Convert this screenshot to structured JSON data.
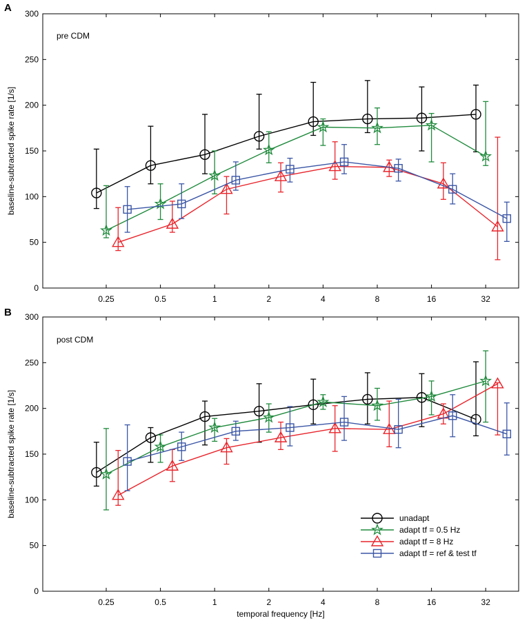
{
  "chart_data": [
    {
      "type": "line",
      "panel_label": "A",
      "annotation": "pre CDM",
      "xlabel": "",
      "ylabel": "baseline-subtracted spike rate [1/s]",
      "xscale": "log2",
      "x": [
        0.25,
        0.5,
        1,
        2,
        4,
        8,
        16,
        32
      ],
      "xtick_labels": [
        "0.25",
        "0.5",
        "1",
        "2",
        "4",
        "8",
        "16",
        "32"
      ],
      "ylim": [
        0,
        300
      ],
      "yticks": [
        0,
        50,
        100,
        150,
        200,
        250,
        300
      ],
      "ytick_labels": [
        "0",
        "50",
        "100",
        "150",
        "200",
        "250",
        "300"
      ],
      "grid": false,
      "series": [
        {
          "name": "unadapt",
          "color": "#000000",
          "marker": "circle",
          "values": [
            104,
            134,
            146,
            166,
            182,
            185,
            186,
            190
          ],
          "err_low": [
            87,
            114,
            125,
            152,
            167,
            170,
            150,
            149
          ],
          "err_high": [
            152,
            177,
            190,
            212,
            225,
            227,
            220,
            222
          ]
        },
        {
          "name": "adapt tf = 0.5 Hz",
          "color": "#1f8a3c",
          "marker": "star",
          "values": [
            63,
            92,
            123,
            151,
            176,
            175,
            178,
            144
          ],
          "err_low": [
            55,
            75,
            103,
            137,
            156,
            157,
            138,
            134
          ],
          "err_high": [
            112,
            114,
            150,
            171,
            185,
            197,
            191,
            204
          ]
        },
        {
          "name": "adapt tf = 8 Hz",
          "color": "#e8232a",
          "marker": "triangle",
          "values": [
            50,
            70,
            108,
            122,
            133,
            132,
            114,
            67
          ],
          "err_low": [
            41,
            61,
            81,
            105,
            119,
            122,
            97,
            31
          ],
          "err_high": [
            88,
            95,
            122,
            137,
            160,
            140,
            137,
            165
          ]
        },
        {
          "name": "adapt tf = ref & test tf",
          "color": "#3a55a5",
          "marker": "square",
          "values": [
            86,
            92,
            118,
            130,
            138,
            131,
            108,
            76
          ],
          "err_low": [
            61,
            76,
            107,
            116,
            125,
            117,
            92,
            51
          ],
          "err_high": [
            111,
            114,
            138,
            142,
            157,
            141,
            125,
            94
          ]
        }
      ]
    },
    {
      "type": "line",
      "panel_label": "B",
      "annotation": "post CDM",
      "xlabel": "temporal frequency [Hz]",
      "ylabel": "baseline-subtracted spike rate [1/s]",
      "xscale": "log2",
      "x": [
        0.25,
        0.5,
        1,
        2,
        4,
        8,
        16,
        32
      ],
      "xtick_labels": [
        "0.25",
        "0.5",
        "1",
        "2",
        "4",
        "8",
        "16",
        "32"
      ],
      "ylim": [
        0,
        300
      ],
      "yticks": [
        0,
        50,
        100,
        150,
        200,
        250,
        300
      ],
      "ytick_labels": [
        "0",
        "50",
        "100",
        "150",
        "200",
        "250",
        "300"
      ],
      "grid": false,
      "legend_position": "bottom-right",
      "series": [
        {
          "name": "unadapt",
          "color": "#000000",
          "marker": "circle",
          "values": [
            130,
            168,
            191,
            197,
            204,
            210,
            212,
            188
          ],
          "err_low": [
            115,
            141,
            160,
            163,
            183,
            183,
            180,
            170
          ],
          "err_high": [
            163,
            179,
            208,
            227,
            232,
            239,
            238,
            251
          ]
        },
        {
          "name": "adapt tf = 0.5 Hz",
          "color": "#1f8a3c",
          "marker": "star",
          "values": [
            128,
            158,
            179,
            190,
            207,
            203,
            213,
            230
          ],
          "err_low": [
            89,
            141,
            164,
            174,
            199,
            187,
            193,
            185
          ],
          "err_high": [
            178,
            171,
            189,
            205,
            215,
            222,
            230,
            263
          ]
        },
        {
          "name": "adapt tf = 8 Hz",
          "color": "#e8232a",
          "marker": "triangle",
          "values": [
            105,
            137,
            157,
            168,
            178,
            177,
            194,
            227
          ],
          "err_low": [
            94,
            120,
            139,
            155,
            153,
            158,
            183,
            171
          ],
          "err_high": [
            154,
            155,
            167,
            185,
            203,
            208,
            205,
            228
          ]
        },
        {
          "name": "adapt tf = ref & test tf",
          "color": "#3a55a5",
          "marker": "square",
          "values": [
            142,
            158,
            175,
            179,
            185,
            177,
            192,
            172
          ],
          "err_low": [
            110,
            143,
            165,
            159,
            165,
            157,
            169,
            149
          ],
          "err_high": [
            182,
            174,
            186,
            202,
            213,
            210,
            215,
            206
          ]
        }
      ]
    }
  ]
}
